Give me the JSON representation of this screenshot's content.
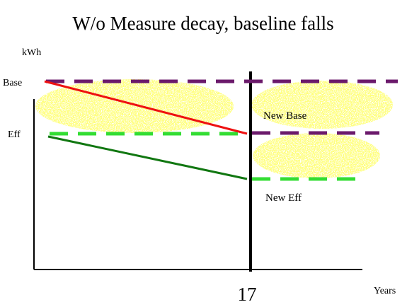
{
  "title": "W/o Measure decay, baseline falls",
  "y_axis_label": "kWh",
  "x_axis_label": "Years",
  "x_marker_label": "17",
  "levels": {
    "base_label": "Base",
    "eff_label": "Eff",
    "new_base_label": "New Base",
    "new_eff_label": "New Eff"
  },
  "colors": {
    "base_dashed": "#6b1a6b",
    "eff_dashed": "#33dd33",
    "baseline_falling": "#ee1111",
    "efficient_falling": "#117711",
    "savings_fill": "#ffff33",
    "axis": "#000000"
  }
}
